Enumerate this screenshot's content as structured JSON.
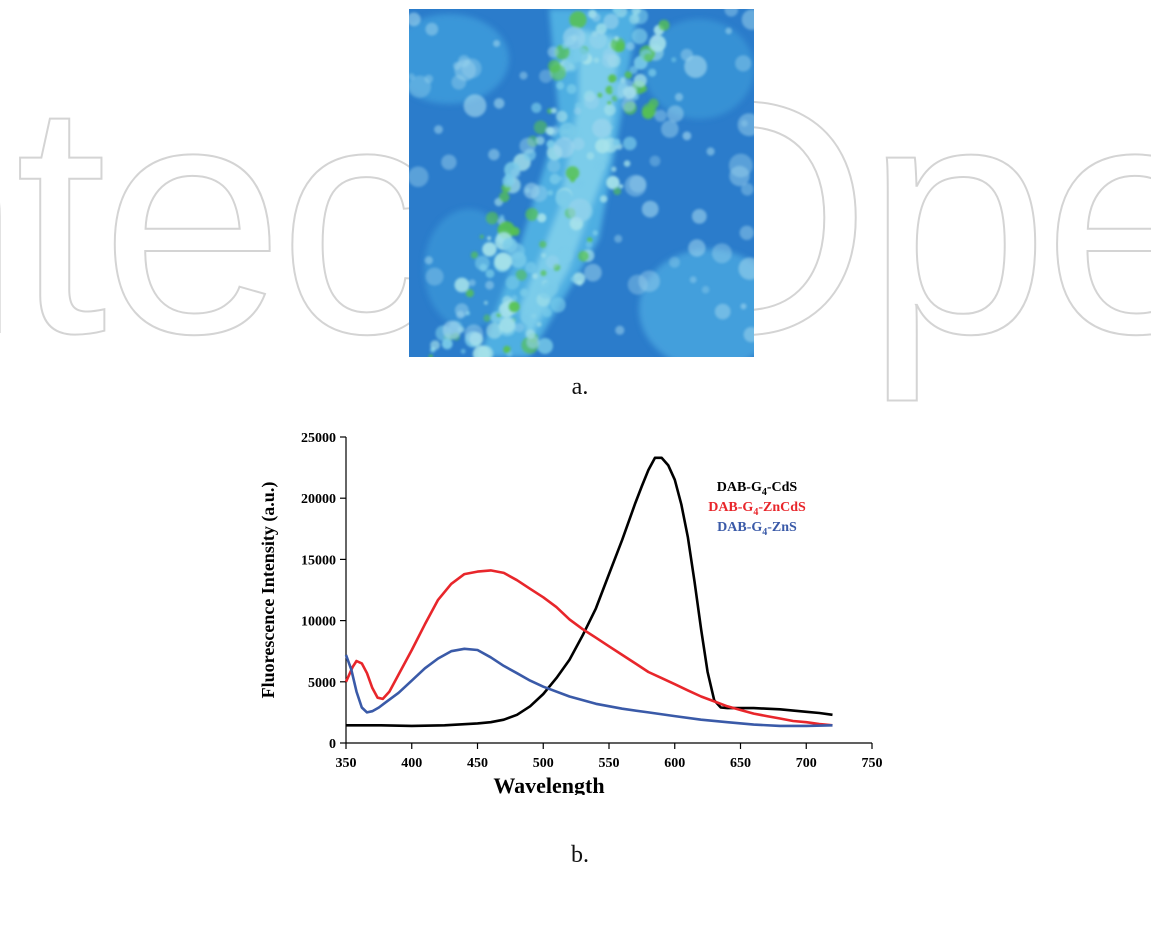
{
  "watermark": {
    "text": "IntechOpen"
  },
  "panel_a": {
    "caption": "a.",
    "image": "fluorescence-micrograph"
  },
  "panel_b": {
    "caption": "b."
  },
  "colors": {
    "cds": "#000000",
    "zncds": "#e8262b",
    "zns": "#3a5aa8"
  },
  "chart_data": {
    "type": "line",
    "title": "",
    "xlabel": "Wavelength",
    "ylabel": "Fluorescence Intensity (a.u.)",
    "xlim": [
      350,
      750
    ],
    "ylim": [
      0,
      25000
    ],
    "xticks": [
      "350",
      "400",
      "450",
      "500",
      "550",
      "600",
      "650",
      "700",
      "750"
    ],
    "yticks": [
      "0",
      "5000",
      "10000",
      "15000",
      "20000",
      "25000"
    ],
    "legend_position": "top-right",
    "series": [
      {
        "name": "DAB-G4-CdS",
        "legend_main": "DAB-G",
        "legend_sub": "4",
        "legend_suffix": "-CdS",
        "color": "#000000",
        "x": [
          350,
          375,
          400,
          425,
          450,
          460,
          470,
          480,
          490,
          500,
          510,
          520,
          530,
          540,
          550,
          560,
          570,
          575,
          580,
          585,
          590,
          595,
          600,
          605,
          610,
          615,
          620,
          625,
          630,
          635,
          640,
          650,
          660,
          670,
          680,
          690,
          700,
          710,
          720
        ],
        "y": [
          1450,
          1450,
          1400,
          1450,
          1600,
          1700,
          1900,
          2300,
          3000,
          4000,
          5300,
          6800,
          8800,
          11000,
          13800,
          16600,
          19600,
          21000,
          22300,
          23300,
          23300,
          22700,
          21500,
          19500,
          16800,
          13200,
          9300,
          5800,
          3500,
          2900,
          2850,
          2850,
          2850,
          2800,
          2750,
          2650,
          2550,
          2450,
          2300
        ]
      },
      {
        "name": "DAB-G4-ZnCdS",
        "legend_main": "DAB-G",
        "legend_sub": "4",
        "legend_suffix": "-ZnCdS",
        "color": "#e8262b",
        "x": [
          350,
          355,
          358,
          362,
          366,
          370,
          374,
          378,
          383,
          390,
          400,
          410,
          420,
          430,
          440,
          450,
          460,
          470,
          480,
          490,
          500,
          510,
          520,
          530,
          540,
          550,
          560,
          570,
          580,
          590,
          600,
          610,
          620,
          630,
          640,
          650,
          660,
          670,
          680,
          690,
          700,
          710,
          720
        ],
        "y": [
          5000,
          6200,
          6700,
          6500,
          5700,
          4500,
          3700,
          3600,
          4200,
          5600,
          7600,
          9700,
          11700,
          13000,
          13800,
          14000,
          14100,
          13900,
          13300,
          12600,
          11900,
          11100,
          10100,
          9300,
          8600,
          7900,
          7200,
          6500,
          5800,
          5300,
          4800,
          4300,
          3800,
          3400,
          3000,
          2700,
          2400,
          2200,
          2000,
          1800,
          1700,
          1550,
          1450
        ]
      },
      {
        "name": "DAB-G4-ZnS",
        "legend_main": "DAB-G",
        "legend_sub": "4",
        "legend_suffix": "-ZnS",
        "color": "#3a5aa8",
        "x": [
          350,
          354,
          358,
          362,
          366,
          370,
          375,
          380,
          390,
          400,
          410,
          420,
          430,
          440,
          450,
          460,
          470,
          480,
          490,
          500,
          520,
          540,
          560,
          580,
          600,
          620,
          640,
          660,
          680,
          700,
          720
        ],
        "y": [
          7200,
          6000,
          4200,
          2900,
          2500,
          2600,
          2900,
          3300,
          4100,
          5100,
          6100,
          6900,
          7500,
          7700,
          7600,
          7000,
          6300,
          5700,
          5100,
          4600,
          3800,
          3200,
          2800,
          2500,
          2200,
          1900,
          1700,
          1500,
          1400,
          1400,
          1450
        ]
      }
    ]
  }
}
